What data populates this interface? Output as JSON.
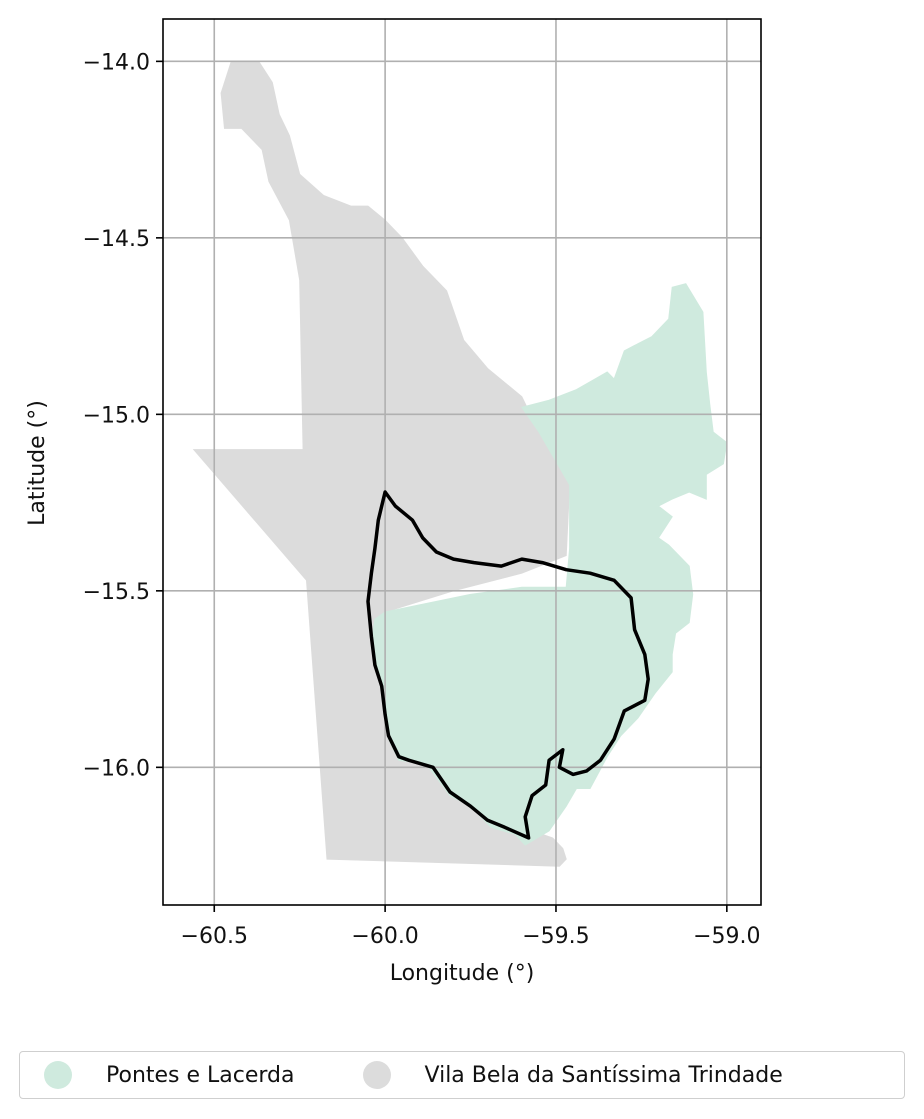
{
  "chart_data": {
    "type": "map",
    "xlabel": "Longitude (°)",
    "ylabel": "Latitude (°)",
    "xlim": [
      -60.65,
      -58.9
    ],
    "ylim": [
      -16.39,
      -13.88
    ],
    "x_ticks": [
      -60.5,
      -60.0,
      -59.5,
      -59.0
    ],
    "x_tick_labels": [
      "−60.5",
      "−60.0",
      "−59.5",
      "−59.0"
    ],
    "y_ticks": [
      -14.0,
      -14.5,
      -15.0,
      -15.5,
      -16.0
    ],
    "y_tick_labels": [
      "−14.0",
      "−14.5",
      "−15.0",
      "−15.5",
      "−16.0"
    ],
    "grid": true,
    "legend_position": "bottom-center",
    "regions": [
      {
        "name": "Pontes e Lacerda",
        "color": "#cfeade",
        "polygon": [
          [
            -59.47,
            -15.49
          ],
          [
            -59.46,
            -15.38
          ],
          [
            -59.46,
            -15.2
          ],
          [
            -59.55,
            -15.05
          ],
          [
            -59.6,
            -14.98
          ],
          [
            -59.52,
            -14.96
          ],
          [
            -59.44,
            -14.93
          ],
          [
            -59.35,
            -14.88
          ],
          [
            -59.33,
            -14.9
          ],
          [
            -59.3,
            -14.82
          ],
          [
            -59.26,
            -14.8
          ],
          [
            -59.22,
            -14.78
          ],
          [
            -59.17,
            -14.73
          ],
          [
            -59.16,
            -14.64
          ],
          [
            -59.12,
            -14.63
          ],
          [
            -59.07,
            -14.71
          ],
          [
            -59.06,
            -14.88
          ],
          [
            -59.05,
            -14.97
          ],
          [
            -59.04,
            -15.05
          ],
          [
            -59.0,
            -15.08
          ],
          [
            -59.01,
            -15.14
          ],
          [
            -59.06,
            -15.17
          ],
          [
            -59.06,
            -15.24
          ],
          [
            -59.11,
            -15.22
          ],
          [
            -59.16,
            -15.24
          ],
          [
            -59.2,
            -15.26
          ],
          [
            -59.16,
            -15.29
          ],
          [
            -59.2,
            -15.35
          ],
          [
            -59.17,
            -15.37
          ],
          [
            -59.11,
            -15.43
          ],
          [
            -59.1,
            -15.51
          ],
          [
            -59.11,
            -15.59
          ],
          [
            -59.15,
            -15.62
          ],
          [
            -59.16,
            -15.68
          ],
          [
            -59.16,
            -15.73
          ],
          [
            -59.21,
            -15.79
          ],
          [
            -59.26,
            -15.86
          ],
          [
            -59.31,
            -15.91
          ],
          [
            -59.35,
            -15.97
          ],
          [
            -59.4,
            -16.06
          ],
          [
            -59.44,
            -16.06
          ],
          [
            -59.47,
            -16.11
          ],
          [
            -59.52,
            -16.18
          ],
          [
            -59.59,
            -16.22
          ],
          [
            -59.62,
            -16.19
          ],
          [
            -59.69,
            -16.17
          ],
          [
            -59.75,
            -16.11
          ],
          [
            -59.81,
            -16.08
          ],
          [
            -59.88,
            -15.99
          ],
          [
            -59.96,
            -15.98
          ],
          [
            -59.99,
            -15.92
          ],
          [
            -60.0,
            -15.84
          ],
          [
            -60.01,
            -15.76
          ],
          [
            -60.04,
            -15.65
          ],
          [
            -60.03,
            -15.58
          ],
          [
            -60.0,
            -15.56
          ],
          [
            -59.75,
            -15.51
          ],
          [
            -59.6,
            -15.49
          ]
        ]
      },
      {
        "name": "Vila Bela da Santíssima Trindade",
        "color": "#dcdcdc",
        "polygon": [
          [
            -60.37,
            -14.0
          ],
          [
            -60.33,
            -14.06
          ],
          [
            -60.31,
            -14.15
          ],
          [
            -60.28,
            -14.21
          ],
          [
            -60.25,
            -14.32
          ],
          [
            -60.18,
            -14.38
          ],
          [
            -60.1,
            -14.41
          ],
          [
            -60.05,
            -14.41
          ],
          [
            -60.0,
            -14.45
          ],
          [
            -59.95,
            -14.5
          ],
          [
            -59.89,
            -14.58
          ],
          [
            -59.82,
            -14.65
          ],
          [
            -59.77,
            -14.79
          ],
          [
            -59.7,
            -14.87
          ],
          [
            -59.6,
            -14.95
          ],
          [
            -59.55,
            -15.05
          ],
          [
            -59.46,
            -15.2
          ],
          [
            -59.47,
            -15.4
          ],
          [
            -59.6,
            -15.45
          ],
          [
            -59.8,
            -15.5
          ],
          [
            -60.0,
            -15.56
          ],
          [
            -60.03,
            -15.58
          ],
          [
            -60.04,
            -15.65
          ],
          [
            -60.01,
            -15.76
          ],
          [
            -60.0,
            -15.84
          ],
          [
            -59.99,
            -15.92
          ],
          [
            -59.96,
            -15.98
          ],
          [
            -59.88,
            -15.99
          ],
          [
            -59.81,
            -16.08
          ],
          [
            -59.75,
            -16.11
          ],
          [
            -59.69,
            -16.17
          ],
          [
            -59.62,
            -16.19
          ],
          [
            -59.59,
            -16.21
          ],
          [
            -59.54,
            -16.19
          ],
          [
            -59.51,
            -16.2
          ],
          [
            -59.48,
            -16.23
          ],
          [
            -59.47,
            -16.26
          ],
          [
            -59.49,
            -16.28
          ],
          [
            -60.17,
            -16.26
          ],
          [
            -60.23,
            -15.47
          ],
          [
            -60.56,
            -15.1
          ],
          [
            -60.24,
            -15.1
          ],
          [
            -60.25,
            -14.62
          ],
          [
            -60.28,
            -14.45
          ],
          [
            -60.34,
            -14.34
          ],
          [
            -60.36,
            -14.25
          ],
          [
            -60.42,
            -14.19
          ],
          [
            -60.47,
            -14.19
          ],
          [
            -60.48,
            -14.09
          ],
          [
            -60.45,
            -14.0
          ]
        ]
      }
    ],
    "outline": {
      "color": "#000000",
      "polygon": [
        [
          -60.0,
          -15.22
        ],
        [
          -59.97,
          -15.26
        ],
        [
          -59.92,
          -15.3
        ],
        [
          -59.89,
          -15.35
        ],
        [
          -59.85,
          -15.39
        ],
        [
          -59.8,
          -15.41
        ],
        [
          -59.74,
          -15.42
        ],
        [
          -59.66,
          -15.43
        ],
        [
          -59.6,
          -15.41
        ],
        [
          -59.54,
          -15.42
        ],
        [
          -59.47,
          -15.44
        ],
        [
          -59.4,
          -15.45
        ],
        [
          -59.33,
          -15.47
        ],
        [
          -59.28,
          -15.52
        ],
        [
          -59.27,
          -15.61
        ],
        [
          -59.24,
          -15.68
        ],
        [
          -59.23,
          -15.75
        ],
        [
          -59.24,
          -15.81
        ],
        [
          -59.3,
          -15.84
        ],
        [
          -59.33,
          -15.92
        ],
        [
          -59.37,
          -15.98
        ],
        [
          -59.41,
          -16.01
        ],
        [
          -59.45,
          -16.02
        ],
        [
          -59.49,
          -16.0
        ],
        [
          -59.48,
          -15.95
        ],
        [
          -59.52,
          -15.98
        ],
        [
          -59.53,
          -16.05
        ],
        [
          -59.57,
          -16.08
        ],
        [
          -59.59,
          -16.14
        ],
        [
          -59.58,
          -16.2
        ],
        [
          -59.65,
          -16.17
        ],
        [
          -59.7,
          -16.15
        ],
        [
          -59.75,
          -16.11
        ],
        [
          -59.81,
          -16.07
        ],
        [
          -59.86,
          -16.0
        ],
        [
          -59.93,
          -15.98
        ],
        [
          -59.96,
          -15.97
        ],
        [
          -59.99,
          -15.91
        ],
        [
          -60.0,
          -15.85
        ],
        [
          -60.01,
          -15.77
        ],
        [
          -60.03,
          -15.71
        ],
        [
          -60.04,
          -15.63
        ],
        [
          -60.05,
          -15.53
        ],
        [
          -60.04,
          -15.45
        ],
        [
          -60.03,
          -15.38
        ],
        [
          -60.02,
          -15.3
        ]
      ]
    }
  },
  "legend": {
    "items": [
      {
        "label": "Pontes e Lacerda",
        "color": "#cfeade"
      },
      {
        "label": "Vila Bela da Santíssima Trindade",
        "color": "#dcdcdc"
      }
    ]
  }
}
